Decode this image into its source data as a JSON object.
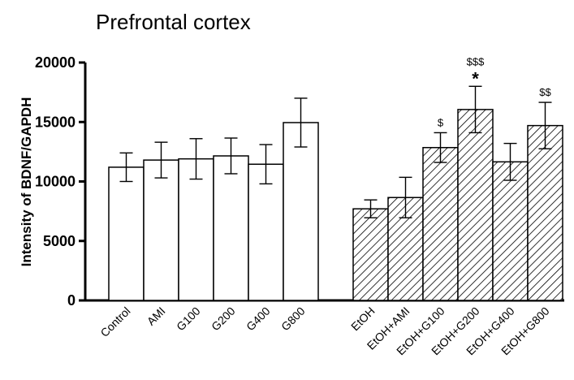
{
  "chart_data": {
    "type": "bar",
    "title": "Prefrontal cortex",
    "ylabel": "Intensity of BDNF/GAPDH",
    "xlabel": "",
    "ylim": [
      0,
      20000
    ],
    "yticks": [
      0,
      5000,
      10000,
      15000,
      20000
    ],
    "grid": false,
    "legend": "none",
    "bar_colors": {
      "open": "#ffffff",
      "hatched_stroke": "#000000"
    },
    "groups": [
      {
        "fill": "open",
        "bars": [
          {
            "category": "Control",
            "value": 11200,
            "error": 1200,
            "annotation": ""
          },
          {
            "category": "AMI",
            "value": 11800,
            "error": 1500,
            "annotation": ""
          },
          {
            "category": "G100",
            "value": 11900,
            "error": 1700,
            "annotation": ""
          },
          {
            "category": "G200",
            "value": 12150,
            "error": 1500,
            "annotation": ""
          },
          {
            "category": "G400",
            "value": 11450,
            "error": 1650,
            "annotation": ""
          },
          {
            "category": "G800",
            "value": 14950,
            "error": 2050,
            "annotation": ""
          }
        ]
      },
      {
        "fill": "hatched",
        "bars": [
          {
            "category": "EtOH",
            "value": 7700,
            "error": 750,
            "annotation": ""
          },
          {
            "category": "EtOH+AMI",
            "value": 8650,
            "error": 1700,
            "annotation": ""
          },
          {
            "category": "EtOH+G100",
            "value": 12850,
            "error": 1250,
            "annotation": "$"
          },
          {
            "category": "EtOH+G200",
            "value": 16050,
            "error": 1950,
            "annotation": "*",
            "annotation2": "$$$"
          },
          {
            "category": "EtOH+G400",
            "value": 11650,
            "error": 1550,
            "annotation": ""
          },
          {
            "category": "EtOH+G800",
            "value": 14700,
            "error": 1950,
            "annotation": "$$"
          }
        ]
      }
    ]
  }
}
